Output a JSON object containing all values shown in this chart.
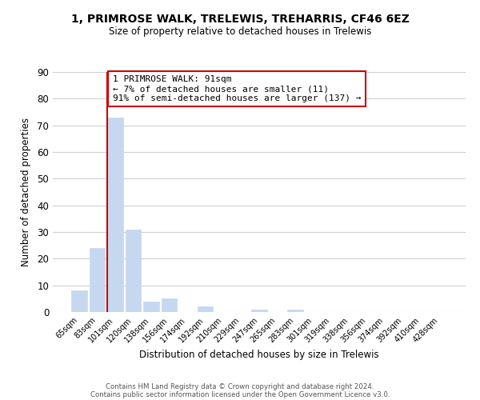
{
  "title_line1": "1, PRIMROSE WALK, TRELEWIS, TREHARRIS, CF46 6EZ",
  "title_line2": "Size of property relative to detached houses in Trelewis",
  "xlabel": "Distribution of detached houses by size in Trelewis",
  "ylabel": "Number of detached properties",
  "bar_labels": [
    "65sqm",
    "83sqm",
    "101sqm",
    "120sqm",
    "138sqm",
    "156sqm",
    "174sqm",
    "192sqm",
    "210sqm",
    "229sqm",
    "247sqm",
    "265sqm",
    "283sqm",
    "301sqm",
    "319sqm",
    "338sqm",
    "356sqm",
    "374sqm",
    "392sqm",
    "410sqm",
    "428sqm"
  ],
  "bar_values": [
    8,
    24,
    73,
    31,
    4,
    5,
    0,
    2,
    0,
    0,
    1,
    0,
    1,
    0,
    0,
    0,
    0,
    0,
    0,
    0,
    0
  ],
  "bar_color": "#c5d8f0",
  "highlight_bar_index": 2,
  "highlight_line_color": "#cc0000",
  "ylim": [
    0,
    90
  ],
  "yticks": [
    0,
    10,
    20,
    30,
    40,
    50,
    60,
    70,
    80,
    90
  ],
  "annotation_title": "1 PRIMROSE WALK: 91sqm",
  "annotation_line1": "← 7% of detached houses are smaller (11)",
  "annotation_line2": "91% of semi-detached houses are larger (137) →",
  "annotation_box_color": "#ffffff",
  "annotation_box_edgecolor": "#cc0000",
  "footer_line1": "Contains HM Land Registry data © Crown copyright and database right 2024.",
  "footer_line2": "Contains public sector information licensed under the Open Government Licence v3.0.",
  "background_color": "#ffffff",
  "grid_color": "#d0d0d0"
}
